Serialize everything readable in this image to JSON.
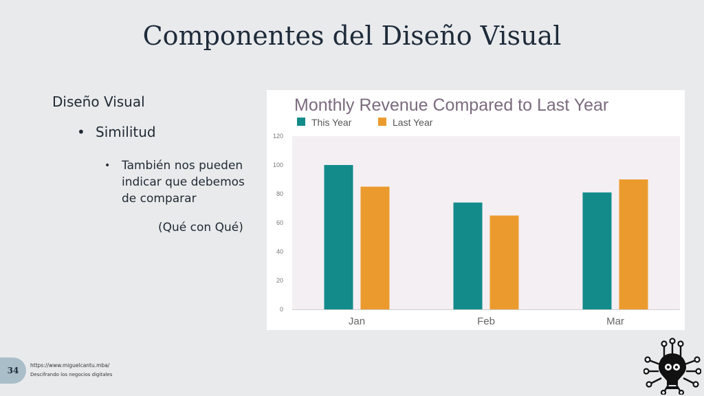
{
  "slide": {
    "title": "Componentes del Diseño Visual",
    "level1": "Diseño Visual",
    "level2": "Similitud",
    "level3": "También nos pueden indicar que debemos de comparar",
    "note": "(Qué con Qué)",
    "bullet": "•"
  },
  "footer": {
    "page_number": "34",
    "url": "https://www.miguelcantu.mba/",
    "tagline": "Descifrando los negocios digitales"
  },
  "chart_data": {
    "type": "bar",
    "title": "Monthly Revenue Compared to Last Year",
    "categories": [
      "Jan",
      "Feb",
      "Mar"
    ],
    "series": [
      {
        "name": "This Year",
        "values": [
          100,
          74,
          81
        ],
        "color": "#138b8b"
      },
      {
        "name": "Last Year",
        "values": [
          85,
          65,
          90
        ],
        "color": "#eb9b2e"
      }
    ],
    "ylim": [
      0,
      120
    ],
    "yticks": [
      0,
      20,
      40,
      60,
      80,
      100,
      120
    ],
    "legend": "top-left",
    "grid": false,
    "plot_background": "#f4eff3",
    "title_color": "#7b6a7e"
  },
  "icons": {
    "logo": "circuit-lightbulb-icon"
  }
}
